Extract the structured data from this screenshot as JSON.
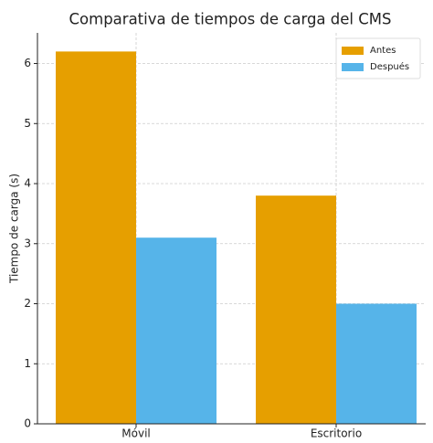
{
  "chart_data": {
    "type": "bar",
    "title": "Comparativa de tiempos de carga del CMS",
    "y_label": "Tiempo de carga (s)",
    "categories": [
      "Móvil",
      "Escritorio"
    ],
    "series": [
      {
        "name": "Antes",
        "color": "#E69F00",
        "values": [
          6.2,
          3.8
        ]
      },
      {
        "name": "Después",
        "color": "#56B4E9",
        "values": [
          3.1,
          2.0
        ]
      }
    ],
    "ylim": [
      0,
      6.51
    ],
    "yticks": [
      0,
      1,
      2,
      3,
      4,
      5,
      6
    ],
    "grid": true,
    "legend": "upper right"
  }
}
